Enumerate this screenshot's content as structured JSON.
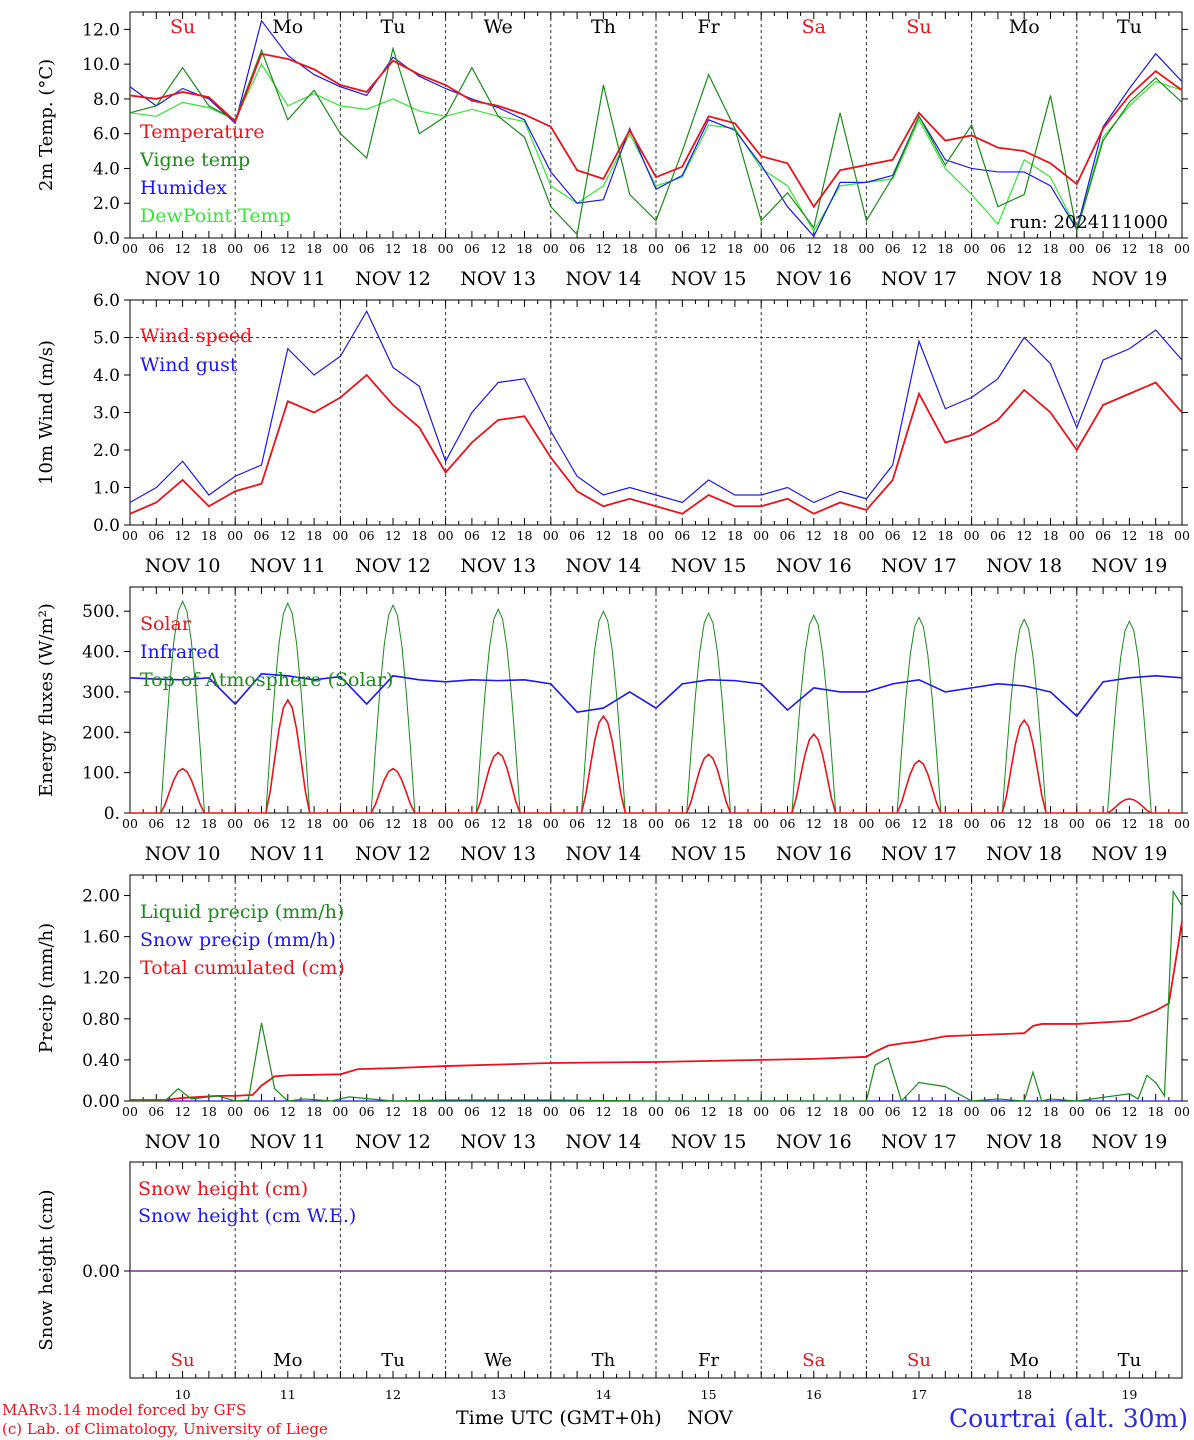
{
  "colors": {
    "temperature": "#e8141b",
    "vigne": "#1a8a1a",
    "humidex": "#1a1ae6",
    "dewpoint": "#33e633",
    "weekend": "#e8141b",
    "weekday": "#000000",
    "station": "#2a2ae0",
    "footer": "#e8141b",
    "snow_line": "#7a2a9a"
  },
  "days": [
    "Su",
    "Mo",
    "Tu",
    "We",
    "Th",
    "Fr",
    "Sa",
    "Su",
    "Mo",
    "Tu"
  ],
  "weekend_flags": [
    true,
    false,
    false,
    false,
    false,
    false,
    true,
    true,
    false,
    false
  ],
  "date_labels": [
    "NOV 10",
    "NOV 11",
    "NOV 12",
    "NOV 13",
    "NOV 14",
    "NOV 15",
    "NOV 16",
    "NOV 17",
    "NOV 18",
    "NOV 19"
  ],
  "day_numbers": [
    "10",
    "11",
    "12",
    "13",
    "14",
    "15",
    "16",
    "17",
    "18",
    "19"
  ],
  "hour_ticks": [
    "00",
    "06",
    "12",
    "18"
  ],
  "hour_end": "00",
  "footer": {
    "model": "MARv3.14 model forced by GFS",
    "credit": "(c) Lab. of Climatology, University of Liege",
    "time_axis": "Time UTC (GMT+0h)",
    "month": "NOV",
    "station": "Courtrai (alt. 30m)"
  },
  "chart_data": [
    {
      "id": "temp",
      "type": "line",
      "ylabel": "2m Temp. (°C)",
      "ylim": [
        0,
        13
      ],
      "yticks": [
        "0.0",
        "2.0",
        "4.0",
        "6.0",
        "8.0",
        "10.0",
        "12.0"
      ],
      "ytick_values": [
        0,
        2,
        4,
        6,
        8,
        10,
        12
      ],
      "grid": "day separators (dotted)",
      "annotation": "run: 2024111000",
      "x_unit": "hours since Nov 10 00 UTC",
      "series": [
        {
          "name": "Temperature",
          "color": "#e8141b",
          "x": [
            0,
            6,
            12,
            18,
            24,
            30,
            36,
            42,
            48,
            54,
            60,
            66,
            72,
            78,
            84,
            90,
            96,
            102,
            108,
            114,
            120,
            126,
            132,
            138,
            144,
            150,
            156,
            162,
            168,
            174,
            180,
            186,
            192,
            198,
            204,
            210,
            216,
            222,
            228,
            234,
            240
          ],
          "y": [
            8.2,
            8.0,
            8.4,
            8.1,
            6.7,
            10.6,
            10.3,
            9.7,
            8.8,
            8.4,
            10.2,
            9.4,
            8.8,
            7.9,
            7.6,
            7.1,
            6.4,
            3.9,
            3.4,
            6.2,
            3.5,
            4.1,
            7.0,
            6.6,
            4.7,
            4.3,
            1.8,
            3.9,
            4.2,
            4.5,
            7.2,
            5.6,
            5.9,
            5.2,
            5.0,
            4.3,
            3.1,
            6.3,
            8.2,
            9.6,
            8.5
          ]
        },
        {
          "name": "Vigne temp",
          "color": "#1a8a1a",
          "x": [
            0,
            6,
            12,
            18,
            24,
            30,
            36,
            42,
            48,
            54,
            60,
            66,
            72,
            78,
            84,
            90,
            96,
            102,
            108,
            114,
            120,
            126,
            132,
            138,
            144,
            150,
            156,
            162,
            168,
            174,
            180,
            186,
            192,
            198,
            204,
            210,
            216,
            222,
            228,
            234,
            240
          ],
          "y": [
            7.2,
            7.6,
            9.8,
            7.6,
            6.8,
            10.8,
            6.8,
            8.5,
            6.0,
            4.6,
            10.9,
            6.0,
            7.0,
            9.8,
            7.0,
            5.8,
            1.8,
            0.2,
            8.8,
            2.5,
            1.0,
            5.0,
            9.4,
            6.3,
            1.0,
            2.6,
            0.6,
            7.2,
            1.0,
            3.5,
            7.0,
            4.2,
            6.5,
            1.8,
            2.5,
            8.2,
            0.4,
            5.6,
            7.8,
            9.2,
            7.8
          ]
        },
        {
          "name": "Humidex",
          "color": "#1a1ae6",
          "x": [
            0,
            6,
            12,
            18,
            24,
            30,
            36,
            42,
            48,
            54,
            60,
            66,
            72,
            78,
            84,
            90,
            96,
            102,
            108,
            114,
            120,
            126,
            132,
            138,
            144,
            150,
            156,
            162,
            168,
            174,
            180,
            186,
            192,
            198,
            204,
            210,
            216,
            222,
            228,
            234,
            240
          ],
          "y": [
            8.7,
            7.6,
            8.6,
            8.0,
            6.6,
            12.5,
            10.5,
            9.4,
            8.7,
            8.2,
            10.4,
            9.3,
            8.6,
            8.0,
            7.5,
            6.8,
            3.8,
            2.0,
            2.2,
            6.3,
            2.8,
            3.6,
            6.8,
            6.2,
            4.2,
            1.8,
            0.1,
            3.2,
            3.2,
            3.6,
            7.0,
            4.5,
            4.0,
            3.8,
            3.8,
            3.0,
            0.5,
            6.4,
            8.6,
            10.6,
            9.0
          ]
        },
        {
          "name": "DewPoint Temp",
          "color": "#33e633",
          "x": [
            0,
            6,
            12,
            18,
            24,
            30,
            36,
            42,
            48,
            54,
            60,
            66,
            72,
            78,
            84,
            90,
            96,
            102,
            108,
            114,
            120,
            126,
            132,
            138,
            144,
            150,
            156,
            162,
            168,
            174,
            180,
            186,
            192,
            198,
            204,
            210,
            216,
            222,
            228,
            234,
            240
          ],
          "y": [
            7.2,
            7.0,
            7.8,
            7.5,
            6.8,
            10.0,
            7.6,
            8.3,
            7.6,
            7.4,
            8.0,
            7.3,
            7.0,
            7.4,
            7.0,
            6.7,
            3.0,
            2.0,
            3.0,
            6.0,
            3.0,
            3.5,
            6.5,
            6.3,
            4.0,
            3.0,
            0.4,
            3.0,
            3.2,
            3.4,
            6.8,
            4.0,
            2.5,
            0.8,
            4.5,
            3.5,
            0.5,
            5.8,
            7.6,
            9.0,
            8.5
          ]
        }
      ]
    },
    {
      "id": "wind",
      "type": "line",
      "ylabel": "10m Wind (m/s)",
      "ylim": [
        0,
        6
      ],
      "yticks": [
        "0.0",
        "1.0",
        "2.0",
        "3.0",
        "4.0",
        "5.0",
        "6.0"
      ],
      "ytick_values": [
        0,
        1,
        2,
        3,
        4,
        5,
        6
      ],
      "reference_line": 5.0,
      "x_unit": "hours since Nov 10 00 UTC",
      "series": [
        {
          "name": "Wind speed",
          "color": "#e8141b",
          "x": [
            0,
            6,
            12,
            18,
            24,
            30,
            36,
            42,
            48,
            54,
            60,
            66,
            72,
            78,
            84,
            90,
            96,
            102,
            108,
            114,
            120,
            126,
            132,
            138,
            144,
            150,
            156,
            162,
            168,
            174,
            180,
            186,
            192,
            198,
            204,
            210,
            216,
            222,
            228,
            234,
            240
          ],
          "y": [
            0.3,
            0.6,
            1.2,
            0.5,
            0.9,
            1.1,
            3.3,
            3.0,
            3.4,
            4.0,
            3.2,
            2.6,
            1.4,
            2.2,
            2.8,
            2.9,
            1.8,
            0.9,
            0.5,
            0.7,
            0.5,
            0.3,
            0.8,
            0.5,
            0.5,
            0.7,
            0.3,
            0.6,
            0.4,
            1.2,
            3.5,
            2.2,
            2.4,
            2.8,
            3.6,
            3.0,
            2.0,
            3.2,
            3.5,
            3.8,
            3.0
          ]
        },
        {
          "name": "Wind gust",
          "color": "#1a1ae6",
          "x": [
            0,
            6,
            12,
            18,
            24,
            30,
            36,
            42,
            48,
            54,
            60,
            66,
            72,
            78,
            84,
            90,
            96,
            102,
            108,
            114,
            120,
            126,
            132,
            138,
            144,
            150,
            156,
            162,
            168,
            174,
            180,
            186,
            192,
            198,
            204,
            210,
            216,
            222,
            228,
            234,
            240
          ],
          "y": [
            0.6,
            1.0,
            1.7,
            0.8,
            1.3,
            1.6,
            4.7,
            4.0,
            4.5,
            5.7,
            4.2,
            3.7,
            1.7,
            3.0,
            3.8,
            3.9,
            2.5,
            1.3,
            0.8,
            1.0,
            0.8,
            0.6,
            1.2,
            0.8,
            0.8,
            1.0,
            0.6,
            0.9,
            0.7,
            1.6,
            4.9,
            3.1,
            3.4,
            3.9,
            5.0,
            4.3,
            2.6,
            4.4,
            4.7,
            5.2,
            4.4
          ]
        }
      ]
    },
    {
      "id": "energy",
      "type": "line",
      "ylabel": "Energy fluxes (W/m²)",
      "ylim": [
        0,
        560
      ],
      "yticks": [
        "0.",
        "100.",
        "200.",
        "300.",
        "400.",
        "500."
      ],
      "ytick_values": [
        0,
        100,
        200,
        300,
        400,
        500
      ],
      "x_unit": "hours since Nov 10 00 UTC",
      "diurnal": {
        "toa_peaks": [
          525,
          520,
          515,
          505,
          500,
          495,
          490,
          485,
          480,
          475
        ],
        "solar_peaks": [
          110,
          280,
          110,
          150,
          240,
          145,
          195,
          130,
          230,
          35
        ],
        "sunrise_hour": 7,
        "sunset_hour": 17
      },
      "series": [
        {
          "name": "Solar",
          "color": "#e8141b"
        },
        {
          "name": "Infrared",
          "color": "#1a1ae6",
          "x": [
            0,
            6,
            12,
            18,
            24,
            30,
            36,
            42,
            48,
            54,
            60,
            66,
            72,
            78,
            84,
            90,
            96,
            102,
            108,
            114,
            120,
            126,
            132,
            138,
            144,
            150,
            156,
            162,
            168,
            174,
            180,
            186,
            192,
            198,
            204,
            210,
            216,
            222,
            228,
            234,
            240
          ],
          "y": [
            335,
            332,
            330,
            335,
            270,
            345,
            340,
            330,
            338,
            270,
            340,
            330,
            325,
            330,
            328,
            330,
            320,
            250,
            260,
            300,
            260,
            320,
            330,
            328,
            320,
            255,
            310,
            300,
            300,
            320,
            330,
            300,
            310,
            320,
            315,
            300,
            240,
            325,
            335,
            340,
            335
          ]
        },
        {
          "name": "Top of Atmosphere (Solar)",
          "color": "#1a8a1a"
        }
      ]
    },
    {
      "id": "precip",
      "type": "line",
      "ylabel": "Precip (mm/h)",
      "ylim": [
        0,
        2.2
      ],
      "yticks": [
        "0.00",
        "0.40",
        "0.80",
        "1.20",
        "1.60",
        "2.00"
      ],
      "ytick_values": [
        0,
        0.4,
        0.8,
        1.2,
        1.6,
        2.0
      ],
      "x_unit": "hours since Nov 10 00 UTC",
      "series": [
        {
          "name": "Liquid precip (mm/h)",
          "color": "#1a8a1a",
          "x": [
            0,
            8,
            11,
            14,
            20,
            24,
            27,
            30,
            33,
            36,
            40,
            46,
            50,
            60,
            72,
            96,
            120,
            156,
            168,
            170,
            173,
            176,
            180,
            186,
            192,
            198,
            204,
            206,
            208,
            210,
            216,
            228,
            230,
            232,
            234,
            236,
            238,
            240
          ],
          "y": [
            0,
            0,
            0.12,
            0.02,
            0.05,
            0,
            0.01,
            0.76,
            0.12,
            0,
            0.02,
            0,
            0.04,
            0,
            0.01,
            0.01,
            0,
            0,
            0,
            0.35,
            0.42,
            0,
            0.18,
            0.14,
            0,
            0.02,
            0,
            0.28,
            0,
            0.02,
            0,
            0.07,
            0.02,
            0.25,
            0.18,
            0.05,
            2.04,
            1.9
          ]
        },
        {
          "name": "Snow precip (mm/h)",
          "color": "#1a1ae6",
          "x": [
            0,
            240
          ],
          "y": [
            0,
            0
          ]
        },
        {
          "name": "Total cumulated (cm)",
          "color": "#e8141b",
          "x": [
            0,
            8,
            12,
            20,
            24,
            28,
            30,
            33,
            36,
            48,
            52,
            60,
            72,
            96,
            120,
            144,
            156,
            168,
            170,
            173,
            176,
            180,
            186,
            192,
            198,
            204,
            206,
            208,
            216,
            228,
            234,
            237,
            240
          ],
          "y": [
            0.01,
            0.01,
            0.03,
            0.05,
            0.05,
            0.06,
            0.15,
            0.24,
            0.25,
            0.26,
            0.31,
            0.32,
            0.34,
            0.37,
            0.38,
            0.4,
            0.41,
            0.43,
            0.48,
            0.54,
            0.56,
            0.58,
            0.63,
            0.64,
            0.65,
            0.66,
            0.73,
            0.75,
            0.75,
            0.78,
            0.88,
            0.95,
            1.75
          ]
        }
      ]
    },
    {
      "id": "snow",
      "type": "line",
      "ylabel": "Snow height (cm)",
      "yticks": [
        "0.00"
      ],
      "ytick_values": [
        0
      ],
      "series": [
        {
          "name": "Snow height (cm)",
          "color": "#e8141b",
          "x": [
            0,
            240
          ],
          "y": [
            0,
            0
          ]
        },
        {
          "name": "Snow height (cm W.E.)",
          "color": "#1a1ae6",
          "x": [
            0,
            240
          ],
          "y": [
            0,
            0
          ]
        }
      ]
    }
  ]
}
